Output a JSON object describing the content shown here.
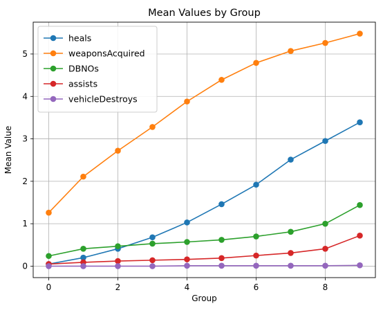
{
  "chart_data": {
    "type": "line",
    "title": "Mean Values by Group",
    "xlabel": "Group",
    "ylabel": "Mean Value",
    "xlim": [
      -0.45,
      9.45
    ],
    "ylim": [
      -0.27,
      5.75
    ],
    "xticks": [
      0,
      2,
      4,
      6,
      8
    ],
    "yticks": [
      0,
      1,
      2,
      3,
      4,
      5
    ],
    "grid": true,
    "legend_position": "top-left",
    "x": [
      0,
      1,
      2,
      3,
      4,
      5,
      6,
      7,
      8,
      9
    ],
    "series": [
      {
        "name": "heals",
        "color": "#1f77b4",
        "values": [
          0.05,
          0.2,
          0.41,
          0.68,
          1.03,
          1.46,
          1.92,
          2.51,
          2.95,
          3.39
        ]
      },
      {
        "name": "weaponsAcquired",
        "color": "#ff7f0e",
        "values": [
          1.26,
          2.11,
          2.72,
          3.28,
          3.88,
          4.39,
          4.79,
          5.07,
          5.26,
          5.48
        ]
      },
      {
        "name": "DBNOs",
        "color": "#2ca02c",
        "values": [
          0.24,
          0.41,
          0.47,
          0.53,
          0.57,
          0.62,
          0.7,
          0.81,
          1.0,
          1.44
        ]
      },
      {
        "name": "assists",
        "color": "#d62728",
        "values": [
          0.05,
          0.09,
          0.12,
          0.14,
          0.16,
          0.19,
          0.25,
          0.31,
          0.41,
          0.72
        ]
      },
      {
        "name": "vehicleDestroys",
        "color": "#9467bd",
        "values": [
          0.0,
          0.0,
          0.0,
          0.0,
          0.01,
          0.01,
          0.01,
          0.01,
          0.01,
          0.02
        ]
      }
    ]
  }
}
